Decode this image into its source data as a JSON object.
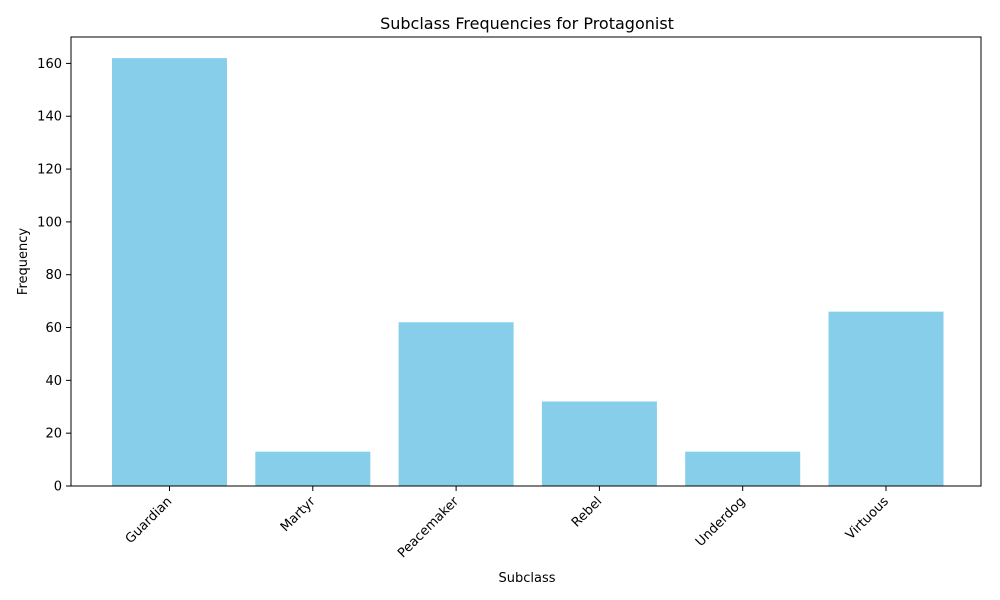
{
  "chart_data": {
    "type": "bar",
    "title": "Subclass Frequencies for Protagonist",
    "xlabel": "Subclass",
    "ylabel": "Frequency",
    "categories": [
      "Guardian",
      "Martyr",
      "Peacemaker",
      "Rebel",
      "Underdog",
      "Virtuous"
    ],
    "values": [
      162,
      13,
      62,
      32,
      13,
      66
    ],
    "ylim": [
      0,
      170
    ],
    "yticks": [
      0,
      20,
      40,
      60,
      80,
      100,
      120,
      140,
      160
    ],
    "bar_color": "#87CEEB",
    "grid": false,
    "legend": "none"
  }
}
